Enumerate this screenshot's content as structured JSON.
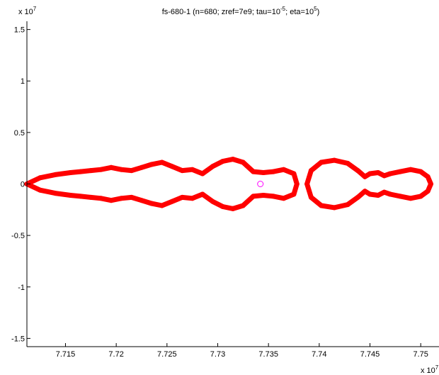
{
  "chart_data": {
    "type": "scatter",
    "title": {
      "prefix": "fs-680-1 (n=680; zref=7e9; tau=10",
      "tau_exp": "-5",
      "middle": "; eta=10",
      "eta_exp": "5",
      "suffix": ")"
    },
    "xlabel": "",
    "ylabel": "",
    "x_multiplier": "x 10",
    "x_multiplier_exp": "7",
    "y_multiplier": "x 10",
    "y_multiplier_exp": "7",
    "xlim": [
      7.7112,
      7.7518
    ],
    "ylim": [
      -1.58,
      1.58
    ],
    "x_ticks": [
      {
        "value": 7.715,
        "label": "7.715"
      },
      {
        "value": 7.72,
        "label": "7.72"
      },
      {
        "value": 7.725,
        "label": "7.725"
      },
      {
        "value": 7.73,
        "label": "7.73"
      },
      {
        "value": 7.735,
        "label": "7.735"
      },
      {
        "value": 7.74,
        "label": "7.74"
      },
      {
        "value": 7.745,
        "label": "7.745"
      },
      {
        "value": 7.75,
        "label": "7.75"
      }
    ],
    "y_ticks": [
      {
        "value": 1.5,
        "label": "1.5"
      },
      {
        "value": 1,
        "label": "1"
      },
      {
        "value": 0.5,
        "label": "0.5"
      },
      {
        "value": 0,
        "label": "0"
      },
      {
        "value": -0.5,
        "label": "-0.5"
      },
      {
        "value": -1,
        "label": "-1"
      },
      {
        "value": -1.5,
        "label": "-1.5"
      }
    ],
    "grid": false,
    "series": [
      {
        "color": "#ff0000",
        "marker": "filled-circle",
        "curves": [
          {
            "closed": true,
            "points": [
              [
                7.7112,
                0.0
              ],
              [
                7.7125,
                0.06
              ],
              [
                7.714,
                0.09
              ],
              [
                7.7155,
                0.11
              ],
              [
                7.7165,
                0.12
              ],
              [
                7.7175,
                0.13
              ],
              [
                7.7185,
                0.14
              ],
              [
                7.7195,
                0.16
              ],
              [
                7.7205,
                0.14
              ],
              [
                7.7215,
                0.13
              ],
              [
                7.7225,
                0.16
              ],
              [
                7.7235,
                0.19
              ],
              [
                7.7245,
                0.21
              ],
              [
                7.7255,
                0.17
              ],
              [
                7.7265,
                0.13
              ],
              [
                7.7275,
                0.14
              ],
              [
                7.7285,
                0.1
              ],
              [
                7.7295,
                0.17
              ],
              [
                7.7305,
                0.22
              ],
              [
                7.7315,
                0.24
              ],
              [
                7.7325,
                0.21
              ],
              [
                7.7335,
                0.12
              ],
              [
                7.7345,
                0.11
              ],
              [
                7.7355,
                0.12
              ],
              [
                7.7365,
                0.14
              ],
              [
                7.7375,
                0.1
              ],
              [
                7.7378,
                0.0
              ],
              [
                7.7375,
                -0.1
              ],
              [
                7.7365,
                -0.14
              ],
              [
                7.7355,
                -0.12
              ],
              [
                7.7345,
                -0.11
              ],
              [
                7.7335,
                -0.12
              ],
              [
                7.7325,
                -0.21
              ],
              [
                7.7315,
                -0.24
              ],
              [
                7.7305,
                -0.22
              ],
              [
                7.7295,
                -0.17
              ],
              [
                7.7285,
                -0.1
              ],
              [
                7.7275,
                -0.14
              ],
              [
                7.7265,
                -0.13
              ],
              [
                7.7255,
                -0.17
              ],
              [
                7.7245,
                -0.21
              ],
              [
                7.7235,
                -0.19
              ],
              [
                7.7225,
                -0.16
              ],
              [
                7.7215,
                -0.13
              ],
              [
                7.7205,
                -0.14
              ],
              [
                7.7195,
                -0.16
              ],
              [
                7.7185,
                -0.14
              ],
              [
                7.7175,
                -0.13
              ],
              [
                7.7165,
                -0.12
              ],
              [
                7.7155,
                -0.11
              ],
              [
                7.714,
                -0.09
              ],
              [
                7.7125,
                -0.06
              ]
            ]
          },
          {
            "closed": true,
            "points": [
              [
                7.7388,
                0.0
              ],
              [
                7.7392,
                0.13
              ],
              [
                7.7402,
                0.21
              ],
              [
                7.7415,
                0.23
              ],
              [
                7.7428,
                0.2
              ],
              [
                7.7438,
                0.13
              ],
              [
                7.7445,
                0.07
              ],
              [
                7.745,
                0.1
              ],
              [
                7.7458,
                0.11
              ],
              [
                7.7464,
                0.08
              ],
              [
                7.747,
                0.1
              ],
              [
                7.748,
                0.12
              ],
              [
                7.749,
                0.14
              ],
              [
                7.75,
                0.12
              ],
              [
                7.7507,
                0.07
              ],
              [
                7.751,
                0.0
              ],
              [
                7.7507,
                -0.07
              ],
              [
                7.75,
                -0.12
              ],
              [
                7.749,
                -0.14
              ],
              [
                7.748,
                -0.12
              ],
              [
                7.747,
                -0.1
              ],
              [
                7.7464,
                -0.08
              ],
              [
                7.7458,
                -0.11
              ],
              [
                7.745,
                -0.1
              ],
              [
                7.7445,
                -0.07
              ],
              [
                7.7438,
                -0.13
              ],
              [
                7.7428,
                -0.2
              ],
              [
                7.7415,
                -0.23
              ],
              [
                7.7402,
                -0.21
              ],
              [
                7.7392,
                -0.13
              ]
            ]
          }
        ]
      },
      {
        "color": "#ff00ff",
        "marker": "open-circle",
        "points": [
          [
            7.7342,
            0.0
          ]
        ]
      }
    ]
  }
}
